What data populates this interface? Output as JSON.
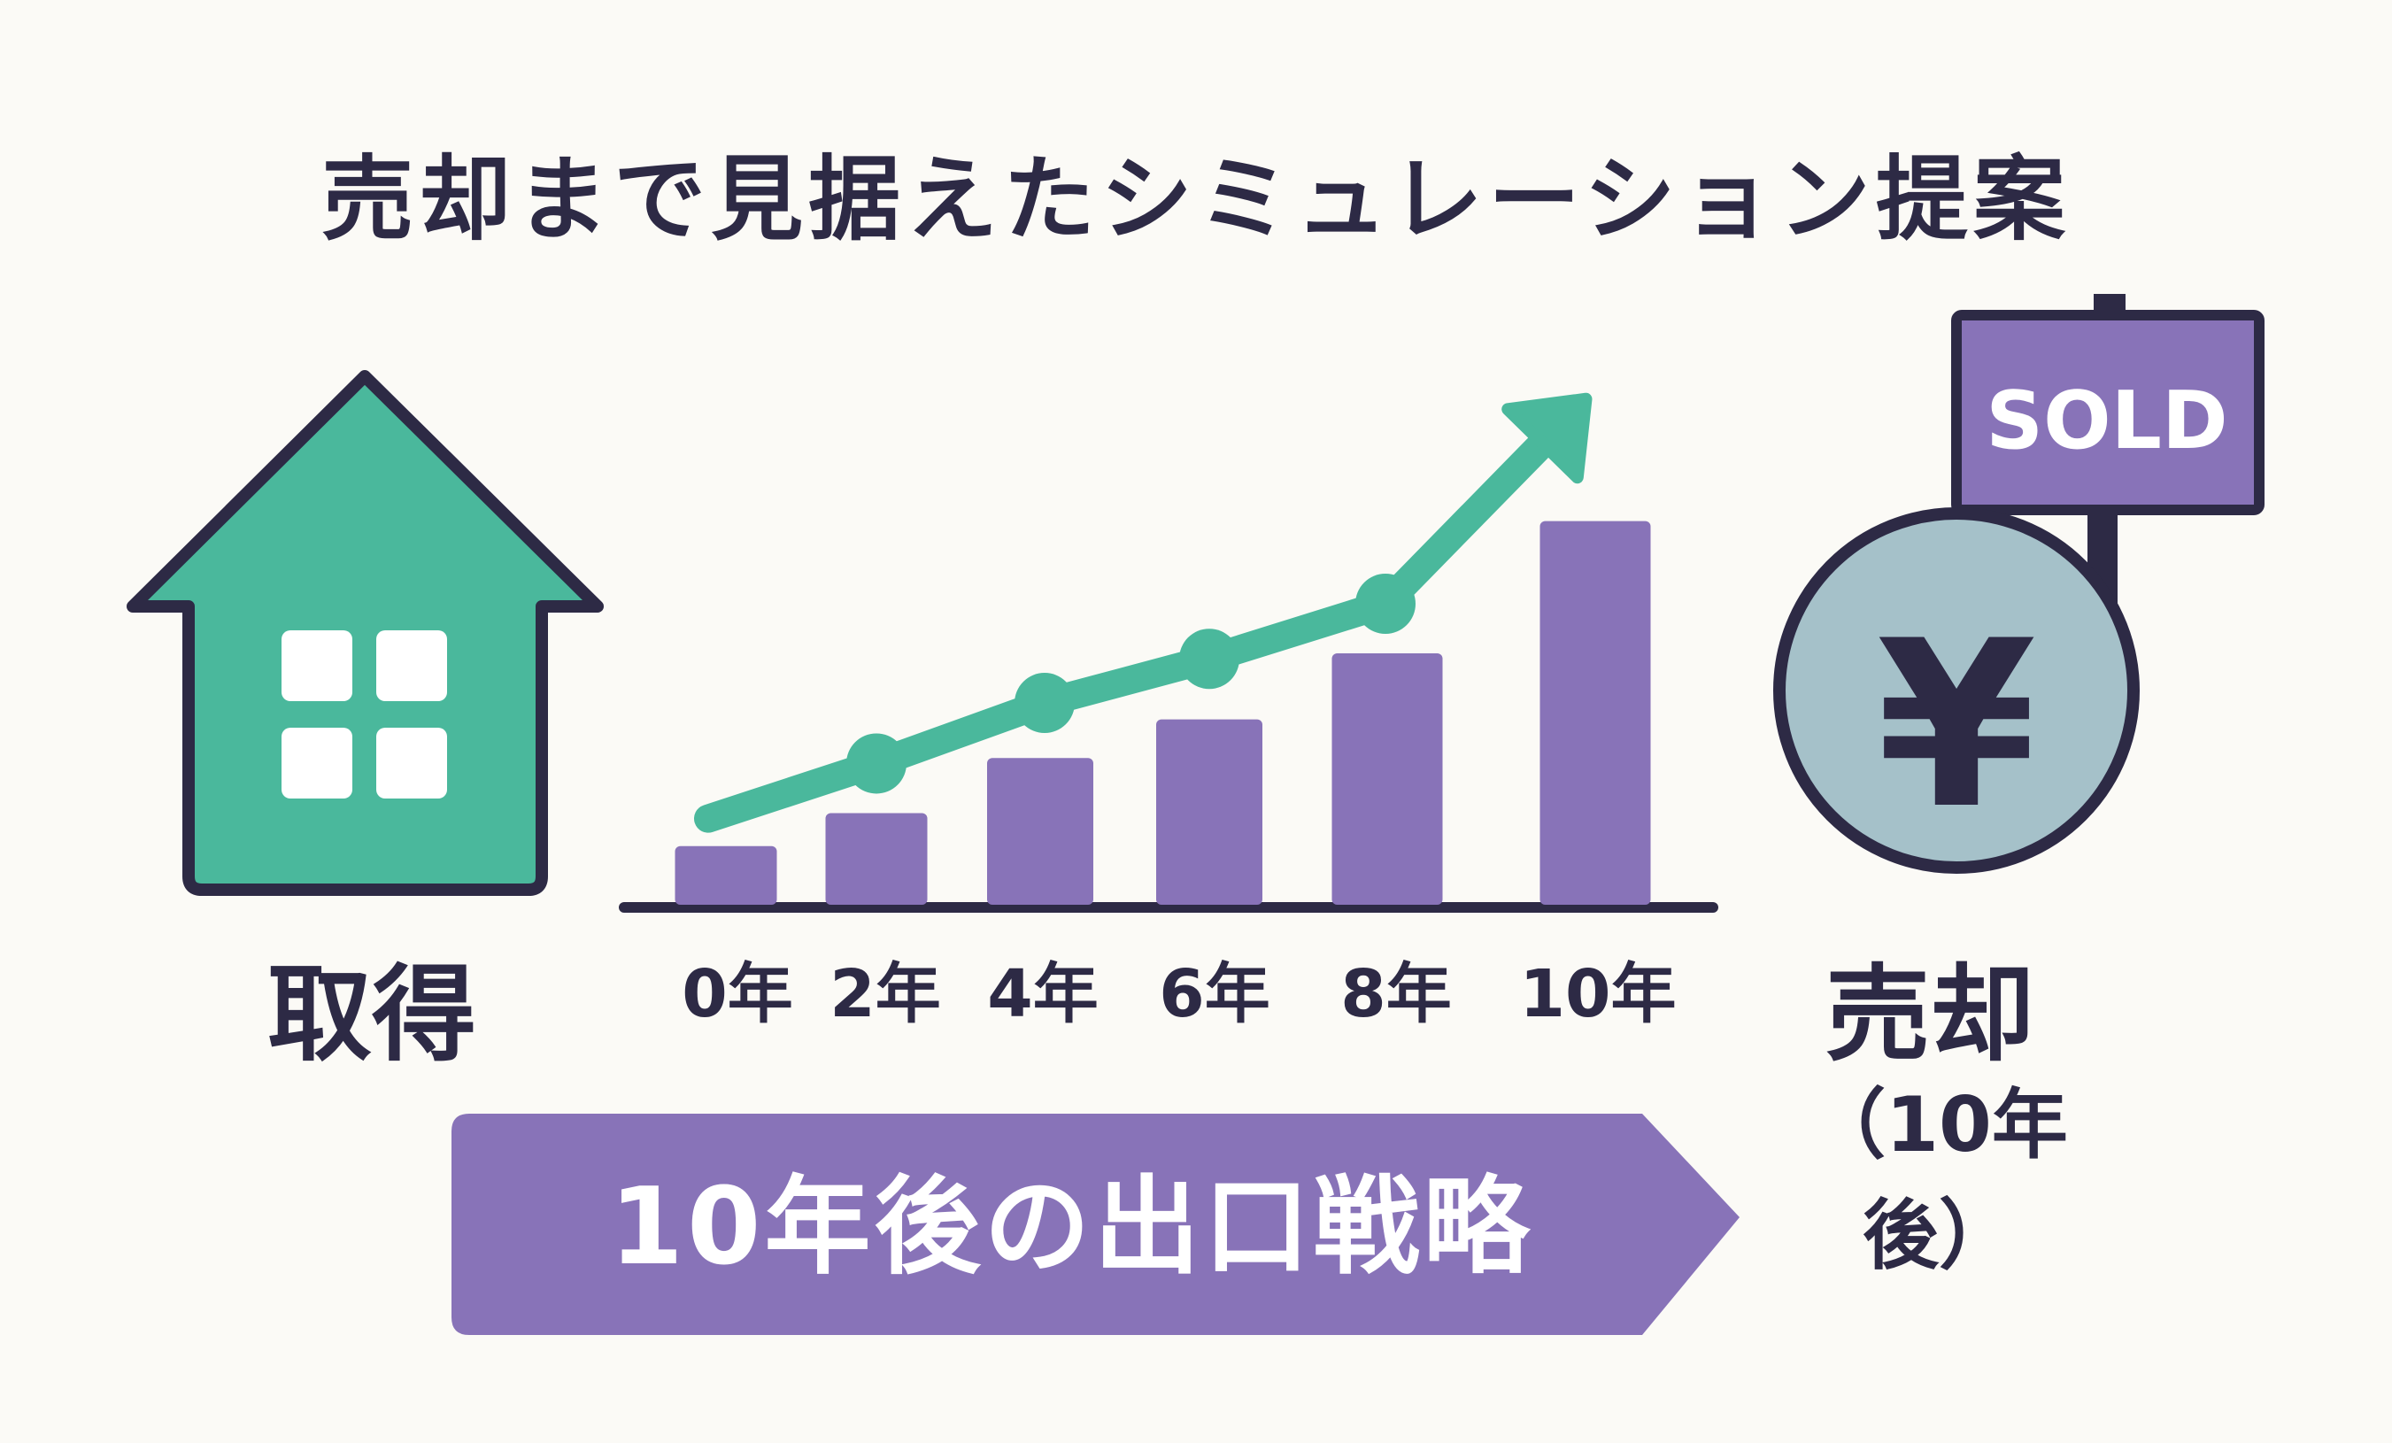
{
  "title": "売却まで見据えたシミュレーション提案",
  "acquisition": {
    "label": "取得",
    "icon": "house-icon"
  },
  "sale": {
    "label": "売却",
    "sublabel": "（10年後）",
    "icon": "yen-coin-icon"
  },
  "sold_sign": {
    "text": "SOLD",
    "icon": "sold-sign-icon"
  },
  "yen_symbol": "¥",
  "banner": {
    "text": "10年後の出口戦略"
  },
  "colors": {
    "teal": "#4ab89c",
    "purple": "#8873b8",
    "dark": "#2d2a45",
    "coin": "#a5c1c9",
    "background": "#fbfaf6"
  },
  "chart_data": {
    "type": "bar",
    "categories": [
      "0年",
      "2年",
      "4年",
      "6年",
      "8年",
      "10年"
    ],
    "values": [
      1,
      1.6,
      2.6,
      3.3,
      4.5,
      6.9
    ],
    "trend_line": [
      1.5,
      2.5,
      3.6,
      4.4,
      5.4,
      8.6
    ],
    "trend_arrow": true,
    "grid": false
  }
}
